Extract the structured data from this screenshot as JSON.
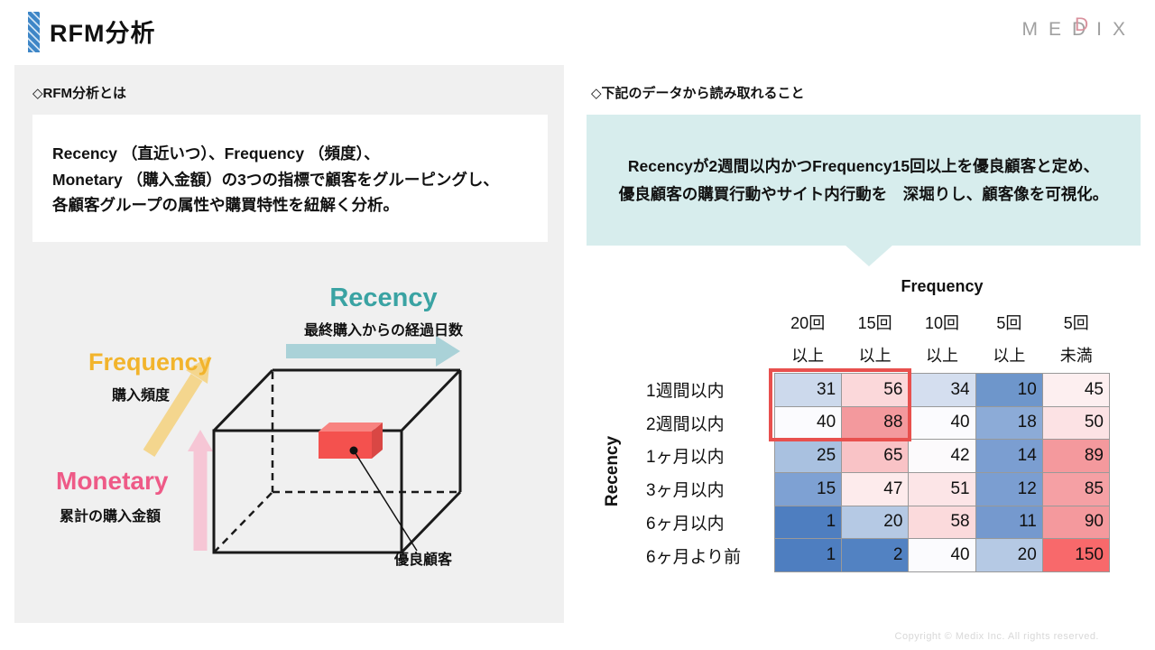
{
  "header": {
    "title": "RFM分析",
    "logo_letters": [
      "M",
      "E",
      "D",
      "I",
      "X"
    ],
    "logo_accent_letter": "D",
    "logo_accent_color": "#d9919d",
    "accent_bar_color": "#3e86c7"
  },
  "left": {
    "section_title": "◇RFM分析とは",
    "description_lines": [
      "Recency （直近いつ）、Frequency （頻度）、",
      "Monetary （購入金額）の3つの指標で顧客をグルーピングし、",
      "各顧客グループの属性や購買特性を紐解く分析。"
    ],
    "axes": {
      "recency": {
        "label": "Recency",
        "sub": "最終購入からの経過日数",
        "color": "#3aa3a3",
        "arrow_color": "#aad2d8"
      },
      "frequency": {
        "label": "Frequency",
        "sub": "購入頻度",
        "color": "#f2b42c",
        "arrow_color": "#f4d68e"
      },
      "monetary": {
        "label": "Monetary",
        "sub": "累計の購入金額",
        "color": "#ee5a87",
        "arrow_color": "#f6c6d5"
      }
    },
    "cube_annotation": "優良顧客",
    "red_cube": {
      "front": "#f4514e",
      "top": "#f88380",
      "side": "#d94744"
    }
  },
  "right": {
    "section_title": "◇下記のデータから読み取れること",
    "callout_lines": [
      "Recencyが2週間以内かつFrequency15回以上を優良顧客と定め、",
      "優良顧客の購買行動やサイト内行動を　深堀りし、顧客像を可視化。"
    ],
    "callout_bg": "#d7eded"
  },
  "chart_data": {
    "type": "heatmap",
    "x_axis_label": "Frequency",
    "y_axis_label": "Recency",
    "columns": [
      {
        "top": "20回",
        "bottom": "以上"
      },
      {
        "top": "15回",
        "bottom": "以上"
      },
      {
        "top": "10回",
        "bottom": "以上"
      },
      {
        "top": "5回",
        "bottom": "以上"
      },
      {
        "top": "5回",
        "bottom": "未満"
      }
    ],
    "rows": [
      "1週間以内",
      "2週間以内",
      "1ヶ月以内",
      "3ヶ月以内",
      "6ヶ月以内",
      "6ヶ月より前"
    ],
    "values": [
      [
        31,
        56,
        34,
        10,
        45
      ],
      [
        40,
        88,
        40,
        18,
        50
      ],
      [
        25,
        65,
        42,
        14,
        89
      ],
      [
        15,
        47,
        51,
        12,
        85
      ],
      [
        1,
        20,
        58,
        11,
        90
      ],
      [
        1,
        2,
        40,
        20,
        150
      ]
    ],
    "cell_colors": [
      [
        "#ccd9ec",
        "#fbd8da",
        "#d4deef",
        "#6e96cb",
        "#fdeff0"
      ],
      [
        "#fbfbfe",
        "#f3999d",
        "#fbfbfe",
        "#8cabd7",
        "#fce2e4"
      ],
      [
        "#a9c1e0",
        "#f9c3c6",
        "#fcfafc",
        "#7b9ed1",
        "#f4999d"
      ],
      [
        "#7ea1d3",
        "#fdebec",
        "#fce5e7",
        "#7b9ed1",
        "#f5a0a4"
      ],
      [
        "#4e7ec0",
        "#b5c9e4",
        "#fbdadc",
        "#7599ce",
        "#f4999d"
      ],
      [
        "#4e7ec0",
        "#5282c2",
        "#fbfbfe",
        "#b5c9e4",
        "#f8696b"
      ]
    ],
    "color_scale": {
      "low": "#4e7ec0",
      "mid": "#fbfbfe",
      "high": "#f8696b"
    },
    "highlight": {
      "rows": [
        0,
        1
      ],
      "cols": [
        0,
        1
      ],
      "border_color": "#e8504e"
    }
  },
  "footer": {
    "copyright": "Copyright © Medix Inc. All rights reserved."
  }
}
